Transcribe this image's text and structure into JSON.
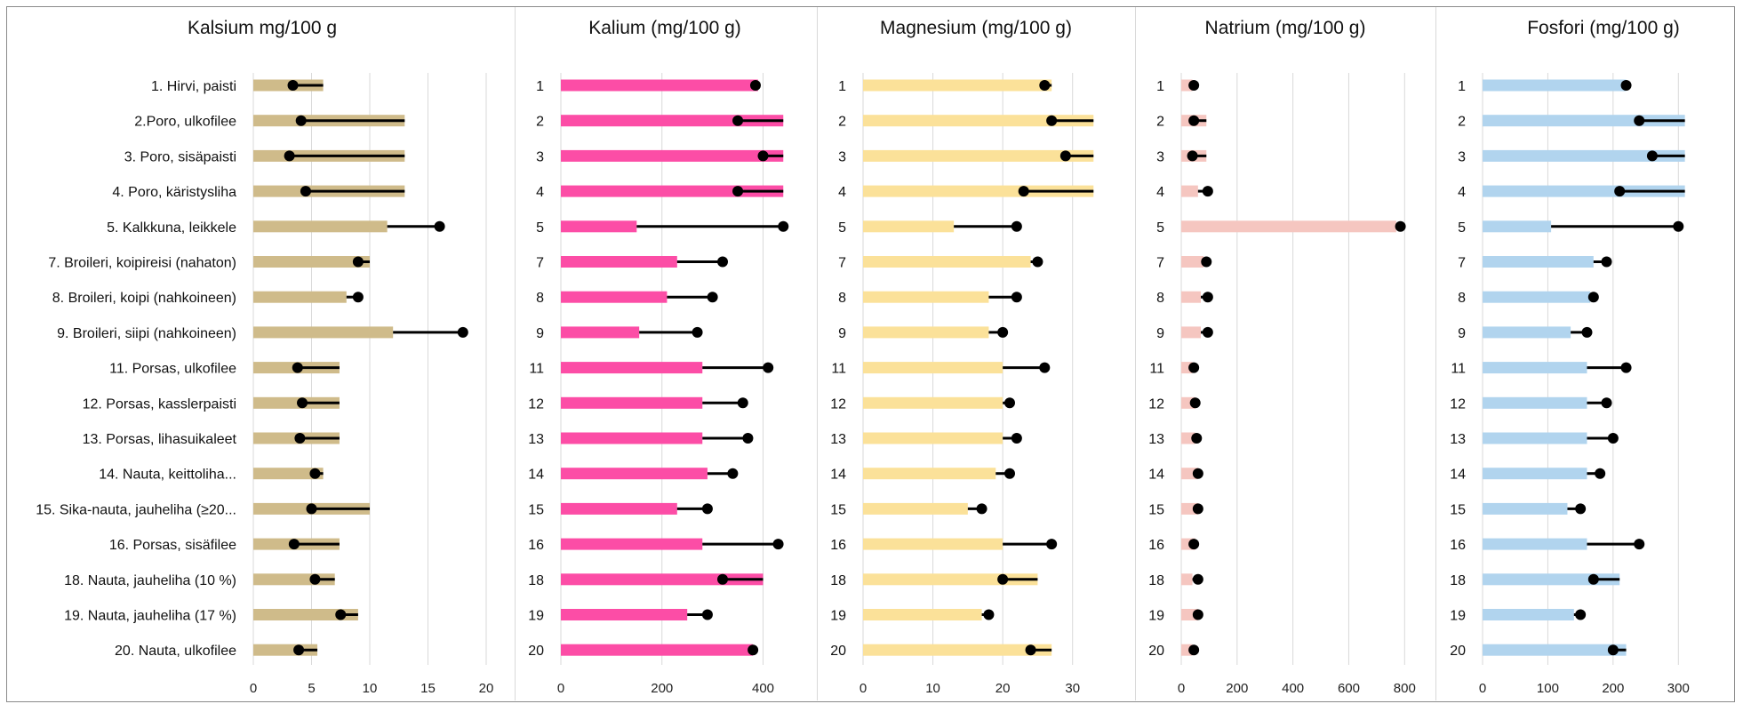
{
  "chart_data": [
    {
      "type": "bar",
      "title": "Kalsium mg/100 g",
      "categories": [
        "1. Hirvi, paisti",
        "2.Poro, ulkofilee",
        "3. Poro, sisäpaisti",
        "4. Poro, käristysliha",
        "5. Kalkkuna, leikkele",
        "7. Broileri, koipireisi (nahaton)",
        "8. Broileri, koipi (nahkoineen)",
        "9. Broileri, siipi (nahkoineen)",
        "11. Porsas, ulkofilee",
        "12. Porsas, kasslerpaisti",
        "13. Porsas, lihasuikaleet",
        "14. Nauta, keittoliha...",
        "15. Sika-nauta, jauheliha (≥20...",
        "16. Porsas, sisäfilee",
        "18. Nauta, jauheliha (10 %)",
        "19. Nauta, jauheliha (17 %)",
        "20. Nauta, ulkofilee"
      ],
      "series": [
        {
          "values": [
            6,
            13,
            13,
            13,
            11.5,
            10,
            8,
            12,
            7.4,
            7.4,
            7.4,
            6,
            10,
            7.4,
            7,
            9,
            5.5
          ]
        },
        {
          "values": [
            3.4,
            4.1,
            3.1,
            4.5,
            16,
            9,
            9,
            18,
            3.8,
            4.2,
            4,
            5.3,
            5,
            3.5,
            5.3,
            7.5,
            3.9
          ]
        }
      ],
      "xlim": [
        0,
        20
      ],
      "ticks": [
        "0",
        "5",
        "10",
        "15",
        "20"
      ],
      "bar_color": "#cfbb8a"
    },
    {
      "type": "bar",
      "title": "Kalium (mg/100 g)",
      "categories": [
        "1",
        "2",
        "3",
        "4",
        "5",
        "7",
        "8",
        "9",
        "11",
        "12",
        "13",
        "14",
        "15",
        "16",
        "18",
        "19",
        "20"
      ],
      "series": [
        {
          "values": [
            390,
            440,
            440,
            440,
            150,
            230,
            210,
            155,
            280,
            280,
            280,
            290,
            230,
            280,
            400,
            250,
            380
          ]
        },
        {
          "values": [
            385,
            350,
            400,
            350,
            440,
            320,
            300,
            270,
            410,
            360,
            370,
            340,
            290,
            430,
            320,
            290,
            380
          ]
        }
      ],
      "xlim": [
        0,
        480
      ],
      "ticks": [
        "0",
        "200",
        "400"
      ],
      "bar_color": "#fc4da6"
    },
    {
      "type": "bar",
      "title": "Magnesium (mg/100 g)",
      "categories": [
        "1",
        "2",
        "3",
        "4",
        "5",
        "7",
        "8",
        "9",
        "11",
        "12",
        "13",
        "14",
        "15",
        "16",
        "18",
        "19",
        "20"
      ],
      "series": [
        {
          "values": [
            27,
            33,
            33,
            33,
            13,
            24,
            18,
            18,
            20,
            20,
            20,
            19,
            15,
            20,
            25,
            17,
            27
          ]
        },
        {
          "values": [
            26,
            27,
            29,
            23,
            22,
            25,
            22,
            20,
            26,
            21,
            22,
            21,
            17,
            27,
            20,
            18,
            24
          ]
        }
      ],
      "xlim": [
        0,
        35
      ],
      "ticks": [
        "0",
        "10",
        "20",
        "30"
      ],
      "bar_color": "#fbe199"
    },
    {
      "type": "bar",
      "title": "Natrium (mg/100 g)",
      "categories": [
        "1",
        "2",
        "3",
        "4",
        "5",
        "7",
        "8",
        "9",
        "11",
        "12",
        "13",
        "14",
        "15",
        "16",
        "18",
        "19",
        "20"
      ],
      "series": [
        {
          "values": [
            40,
            90,
            90,
            60,
            770,
            80,
            70,
            70,
            40,
            50,
            50,
            60,
            60,
            50,
            40,
            60,
            40
          ]
        },
        {
          "values": [
            45,
            45,
            40,
            95,
            785,
            90,
            95,
            95,
            45,
            50,
            55,
            60,
            60,
            45,
            60,
            60,
            45
          ]
        }
      ],
      "xlim": [
        0,
        850
      ],
      "ticks": [
        "0",
        "200",
        "400",
        "600",
        "800"
      ],
      "bar_color": "#f5c6c0"
    },
    {
      "type": "bar",
      "title": "Fosfori (mg/100 g)",
      "categories": [
        "1",
        "2",
        "3",
        "4",
        "5",
        "7",
        "8",
        "9",
        "11",
        "12",
        "13",
        "14",
        "15",
        "16",
        "18",
        "19",
        "20"
      ],
      "series": [
        {
          "values": [
            220,
            310,
            310,
            310,
            105,
            170,
            165,
            135,
            160,
            160,
            160,
            160,
            130,
            160,
            210,
            140,
            220
          ]
        },
        {
          "values": [
            220,
            240,
            260,
            210,
            300,
            190,
            170,
            160,
            220,
            190,
            200,
            180,
            150,
            240,
            170,
            150,
            200
          ]
        }
      ],
      "xlim": [
        0,
        350
      ],
      "ticks": [
        "0",
        "100",
        "200",
        "300"
      ],
      "bar_color": "#b1d4ee"
    }
  ],
  "colors": {
    "marker": "#000000",
    "gridline": "#d9d9d9",
    "axis_text": "#222222"
  }
}
